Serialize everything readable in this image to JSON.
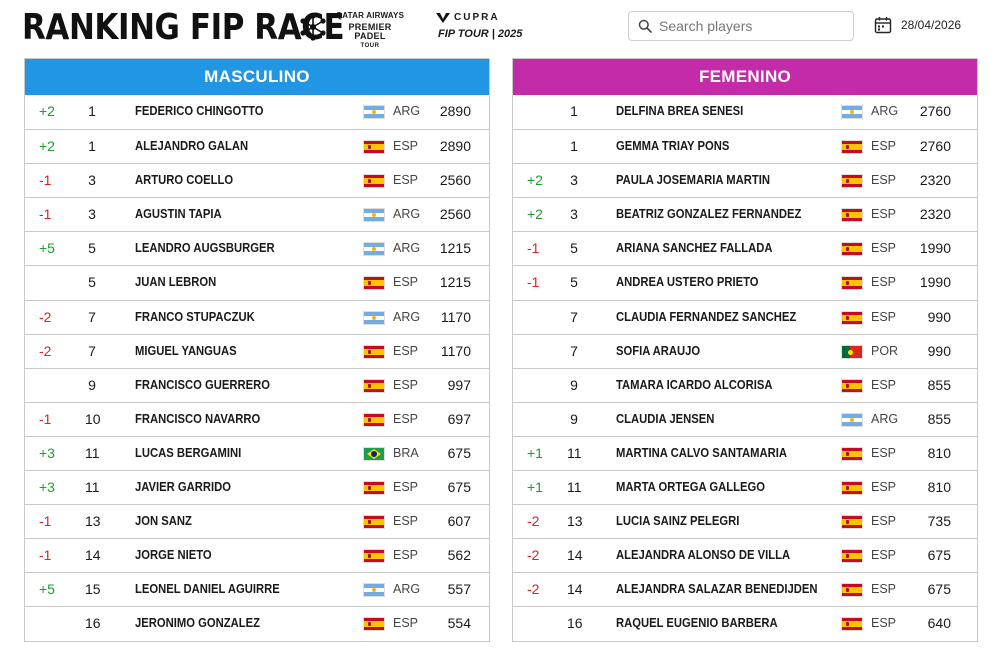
{
  "header": {
    "title": "RANKING FIP RACE",
    "qatar_logo": {
      "line1": "QATAR AIRWAYS",
      "line2": "PREMIER PADEL",
      "line3": "TOUR"
    },
    "cupra_logo": {
      "brand": "CUPRA",
      "subtitle": "FIP TOUR | 2025"
    },
    "search": {
      "placeholder": "Search players",
      "value": ""
    },
    "date": "28/04/2026"
  },
  "colors": {
    "masculino_header": "#2196e3",
    "femenino_header": "#c42ba8",
    "up": "#1f9e2e",
    "down": "#e02020"
  },
  "masculino": {
    "title": "MASCULINO",
    "rows": [
      {
        "change": "+2",
        "pos": "1",
        "name": "FEDERICO CHINGOTTO",
        "flag": "arg",
        "country": "ARG",
        "points": "2890"
      },
      {
        "change": "+2",
        "pos": "1",
        "name": "ALEJANDRO GALAN",
        "flag": "esp",
        "country": "ESP",
        "points": "2890"
      },
      {
        "change": "-1",
        "pos": "3",
        "name": "ARTURO COELLO",
        "flag": "esp",
        "country": "ESP",
        "points": "2560"
      },
      {
        "change": "-1",
        "pos": "3",
        "name": "AGUSTIN TAPIA",
        "flag": "arg",
        "country": "ARG",
        "points": "2560"
      },
      {
        "change": "+5",
        "pos": "5",
        "name": "LEANDRO AUGSBURGER",
        "flag": "arg",
        "country": "ARG",
        "points": "1215"
      },
      {
        "change": "",
        "pos": "5",
        "name": "JUAN LEBRON",
        "flag": "esp",
        "country": "ESP",
        "points": "1215"
      },
      {
        "change": "-2",
        "pos": "7",
        "name": "FRANCO STUPACZUK",
        "flag": "arg",
        "country": "ARG",
        "points": "1170"
      },
      {
        "change": "-2",
        "pos": "7",
        "name": "MIGUEL YANGUAS",
        "flag": "esp",
        "country": "ESP",
        "points": "1170"
      },
      {
        "change": "",
        "pos": "9",
        "name": "FRANCISCO GUERRERO",
        "flag": "esp",
        "country": "ESP",
        "points": "997"
      },
      {
        "change": "-1",
        "pos": "10",
        "name": "FRANCISCO NAVARRO",
        "flag": "esp",
        "country": "ESP",
        "points": "697"
      },
      {
        "change": "+3",
        "pos": "11",
        "name": "LUCAS BERGAMINI",
        "flag": "bra",
        "country": "BRA",
        "points": "675"
      },
      {
        "change": "+3",
        "pos": "11",
        "name": "JAVIER GARRIDO",
        "flag": "esp",
        "country": "ESP",
        "points": "675"
      },
      {
        "change": "-1",
        "pos": "13",
        "name": "JON SANZ",
        "flag": "esp",
        "country": "ESP",
        "points": "607"
      },
      {
        "change": "-1",
        "pos": "14",
        "name": "JORGE NIETO",
        "flag": "esp",
        "country": "ESP",
        "points": "562"
      },
      {
        "change": "+5",
        "pos": "15",
        "name": "LEONEL DANIEL AGUIRRE",
        "flag": "arg",
        "country": "ARG",
        "points": "557"
      },
      {
        "change": "",
        "pos": "16",
        "name": "JERONIMO GONZALEZ",
        "flag": "esp",
        "country": "ESP",
        "points": "554"
      }
    ]
  },
  "femenino": {
    "title": "FEMENINO",
    "rows": [
      {
        "change": "",
        "pos": "1",
        "name": "DELFINA BREA SENESI",
        "flag": "arg",
        "country": "ARG",
        "points": "2760"
      },
      {
        "change": "",
        "pos": "1",
        "name": "GEMMA TRIAY PONS",
        "flag": "esp",
        "country": "ESP",
        "points": "2760"
      },
      {
        "change": "+2",
        "pos": "3",
        "name": "PAULA JOSEMARIA MARTIN",
        "flag": "esp",
        "country": "ESP",
        "points": "2320"
      },
      {
        "change": "+2",
        "pos": "3",
        "name": "BEATRIZ GONZALEZ FERNANDEZ",
        "flag": "esp",
        "country": "ESP",
        "points": "2320"
      },
      {
        "change": "-1",
        "pos": "5",
        "name": "ARIANA SANCHEZ FALLADA",
        "flag": "esp",
        "country": "ESP",
        "points": "1990"
      },
      {
        "change": "-1",
        "pos": "5",
        "name": "ANDREA USTERO PRIETO",
        "flag": "esp",
        "country": "ESP",
        "points": "1990"
      },
      {
        "change": "",
        "pos": "7",
        "name": "CLAUDIA FERNANDEZ SANCHEZ",
        "flag": "esp",
        "country": "ESP",
        "points": "990"
      },
      {
        "change": "",
        "pos": "7",
        "name": "SOFIA ARAUJO",
        "flag": "por",
        "country": "POR",
        "points": "990"
      },
      {
        "change": "",
        "pos": "9",
        "name": "TAMARA ICARDO ALCORISA",
        "flag": "esp",
        "country": "ESP",
        "points": "855"
      },
      {
        "change": "",
        "pos": "9",
        "name": "CLAUDIA JENSEN",
        "flag": "arg",
        "country": "ARG",
        "points": "855"
      },
      {
        "change": "+1",
        "pos": "11",
        "name": "MARTINA CALVO SANTAMARIA",
        "flag": "esp",
        "country": "ESP",
        "points": "810"
      },
      {
        "change": "+1",
        "pos": "11",
        "name": "MARTA ORTEGA GALLEGO",
        "flag": "esp",
        "country": "ESP",
        "points": "810"
      },
      {
        "change": "-2",
        "pos": "13",
        "name": "LUCIA SAINZ PELEGRI",
        "flag": "esp",
        "country": "ESP",
        "points": "735"
      },
      {
        "change": "-2",
        "pos": "14",
        "name": "ALEJANDRA ALONSO DE VILLA",
        "flag": "esp",
        "country": "ESP",
        "points": "675"
      },
      {
        "change": "-2",
        "pos": "14",
        "name": "ALEJANDRA SALAZAR BENEDIJDEN",
        "flag": "esp",
        "country": "ESP",
        "points": "675"
      },
      {
        "change": "",
        "pos": "16",
        "name": "RAQUEL EUGENIO BARBERA",
        "flag": "esp",
        "country": "ESP",
        "points": "640"
      }
    ]
  }
}
